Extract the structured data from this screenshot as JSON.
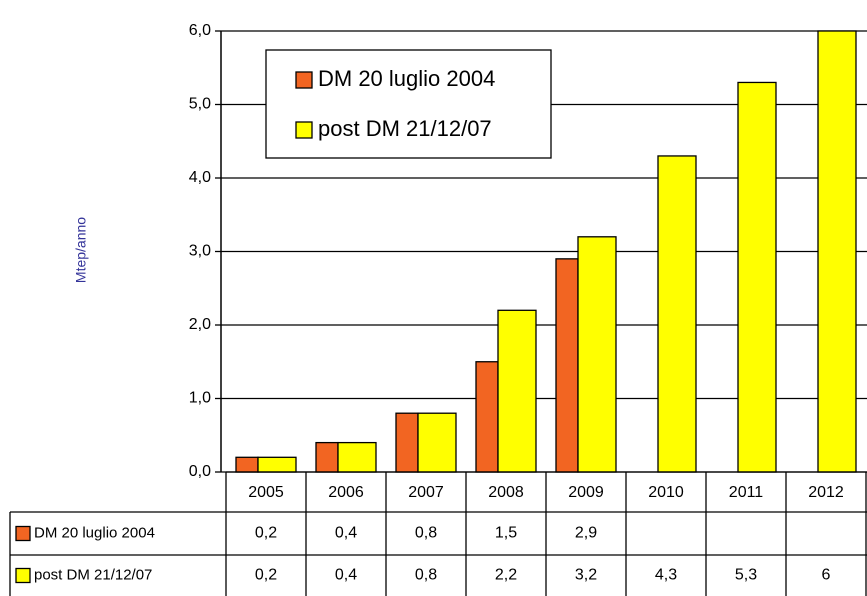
{
  "chart_data": {
    "type": "bar",
    "y_label": "Mtep/anno",
    "categories": [
      "2005",
      "2006",
      "2007",
      "2008",
      "2009",
      "2010",
      "2011",
      "2012"
    ],
    "series": [
      {
        "name": "DM 20 luglio 2004",
        "color": "#f26522",
        "values": [
          0.2,
          0.4,
          0.8,
          1.5,
          2.9,
          null,
          null,
          null
        ],
        "value_labels": [
          "0,2",
          "0,4",
          "0,8",
          "1,5",
          "2,9",
          null,
          null,
          null
        ]
      },
      {
        "name": "post DM 21/12/07",
        "color": "#ffff00",
        "values": [
          0.2,
          0.4,
          0.8,
          2.2,
          3.2,
          4.3,
          5.3,
          6.0
        ],
        "value_labels": [
          "0,2",
          "0,4",
          "0,8",
          "2,2",
          "3,2",
          "4,3",
          "5,3",
          "6"
        ]
      }
    ],
    "ylim": [
      0,
      6
    ],
    "yticks": [
      {
        "value": 0,
        "label": "0,0"
      },
      {
        "value": 1,
        "label": "1,0"
      },
      {
        "value": 2,
        "label": "2,0"
      },
      {
        "value": 3,
        "label": "3,0"
      },
      {
        "value": 4,
        "label": "4,0"
      },
      {
        "value": 5,
        "label": "5,0"
      },
      {
        "value": 6,
        "label": "6,0"
      }
    ],
    "grid": true,
    "legend": "top-left"
  }
}
